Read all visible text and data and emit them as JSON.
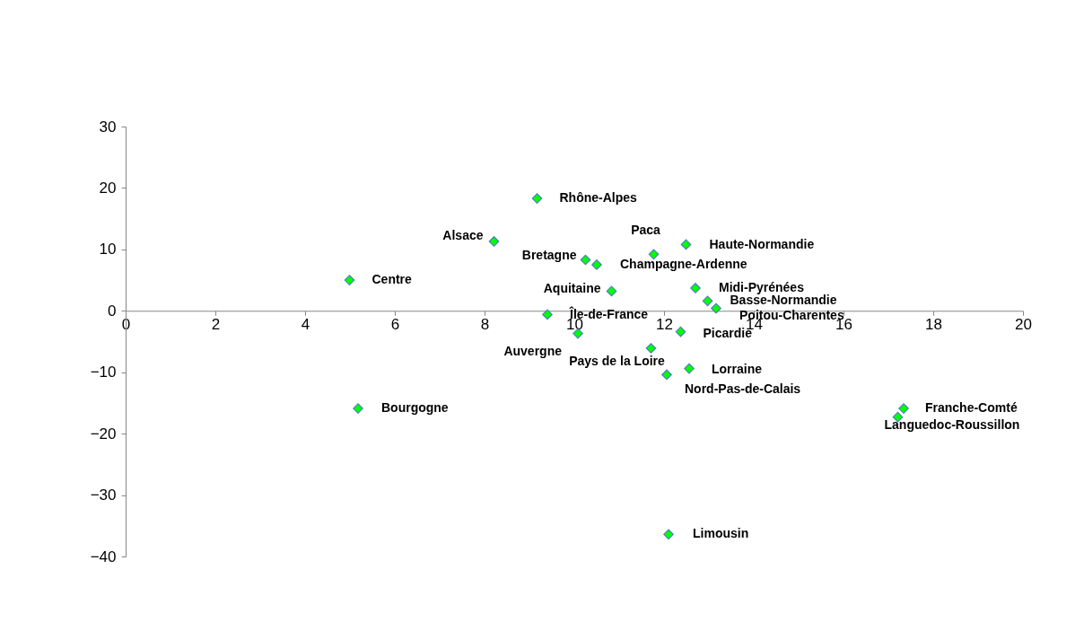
{
  "chart_data": {
    "type": "scatter",
    "marker": "diamond",
    "grid": false,
    "xlim": [
      0,
      20
    ],
    "xticks": [
      0,
      2,
      4,
      6,
      8,
      10,
      12,
      14,
      16,
      18,
      20
    ],
    "ylim": [
      -40,
      30
    ],
    "yticks": [
      -40,
      -30,
      -20,
      -10,
      0,
      10,
      20,
      30
    ],
    "series": [
      {
        "color": "#00ff00",
        "x": [
          9.17,
          8.21,
          4.99,
          10.25,
          10.5,
          11.77,
          12.49,
          10.83,
          12.7,
          12.97,
          13.16,
          9.4,
          10.08,
          12.37,
          11.71,
          12.56,
          12.06,
          5.18,
          17.34,
          17.21,
          12.1
        ],
        "values": [
          18.3,
          11.3,
          5.0,
          8.3,
          7.5,
          9.2,
          10.8,
          3.2,
          3.7,
          1.6,
          0.4,
          -0.6,
          -3.7,
          -3.4,
          -6.1,
          -9.4,
          -10.4,
          -15.9,
          -15.9,
          -17.3,
          -36.4
        ]
      }
    ],
    "annotations": [
      {
        "text": "Rhône-Alpes",
        "x": 9.17,
        "y": 18.3
      },
      {
        "text": "Alsace",
        "x": 8.21,
        "y": 11.3
      },
      {
        "text": "Centre",
        "x": 4.99,
        "y": 5.0
      },
      {
        "text": "Bretagne",
        "x": 10.25,
        "y": 8.3
      },
      {
        "text": "Champagne-Ardenne",
        "x": 10.5,
        "y": 7.5
      },
      {
        "text": "Paca",
        "x": 11.77,
        "y": 9.2
      },
      {
        "text": "Haute-Normandie",
        "x": 12.49,
        "y": 10.8
      },
      {
        "text": "Aquitaine",
        "x": 10.83,
        "y": 3.2
      },
      {
        "text": "Midi-Pyrénées",
        "x": 12.7,
        "y": 3.7
      },
      {
        "text": "Basse-Normandie",
        "x": 12.97,
        "y": 1.6
      },
      {
        "text": "Poitou-Charentes",
        "x": 13.16,
        "y": 0.4
      },
      {
        "text": "Île-de-France",
        "x": 9.4,
        "y": -0.6
      },
      {
        "text": "Auvergne",
        "x": 10.08,
        "y": -3.7
      },
      {
        "text": "Picardie",
        "x": 12.37,
        "y": -3.4
      },
      {
        "text": "Pays de la Loire",
        "x": 11.71,
        "y": -6.1
      },
      {
        "text": "Lorraine",
        "x": 12.56,
        "y": -9.4
      },
      {
        "text": "Nord-Pas-de-Calais",
        "x": 12.06,
        "y": -10.4
      },
      {
        "text": "Bourgogne",
        "x": 5.18,
        "y": -15.9
      },
      {
        "text": "Franche-Comté",
        "x": 17.34,
        "y": -15.9
      },
      {
        "text": "Languedoc-Roussillon",
        "x": 17.21,
        "y": -17.3
      },
      {
        "text": "Limousin",
        "x": 12.1,
        "y": -36.4
      }
    ]
  }
}
